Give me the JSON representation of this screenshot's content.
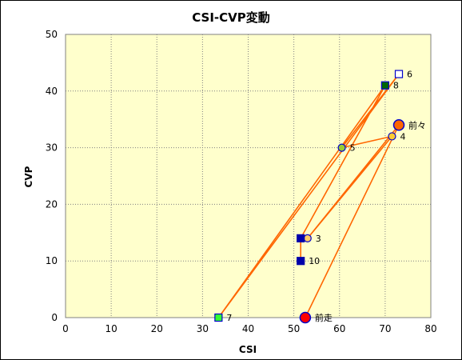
{
  "chart_data": {
    "type": "scatter",
    "title": "CSI-CVP変動",
    "xlabel": "CSI",
    "ylabel": "CVP",
    "xlim": [
      0,
      80
    ],
    "ylim": [
      0,
      50
    ],
    "xticks": [
      0,
      10,
      20,
      30,
      40,
      50,
      60,
      70,
      80
    ],
    "yticks": [
      0,
      10,
      20,
      30,
      40,
      50
    ],
    "grid": true,
    "plot_background": "#ffffcc",
    "line_color": "#ff6600",
    "points": [
      {
        "label": "前走",
        "x": 52.5,
        "y": 0,
        "marker": "circle",
        "fill": "#ff0000",
        "stroke": "#0000cc"
      },
      {
        "label": "前々",
        "x": 73,
        "y": 34,
        "marker": "circle",
        "fill": "#ff6600",
        "stroke": "#0000cc"
      },
      {
        "label": "3",
        "x": 53,
        "y": 14,
        "marker": "circle-small",
        "fill": "#ffcc66",
        "stroke": "#0000cc"
      },
      {
        "label": "4",
        "x": 71.5,
        "y": 32,
        "marker": "circle-small",
        "fill": "#ffcc33",
        "stroke": "#0000cc"
      },
      {
        "label": "5",
        "x": 60.5,
        "y": 30,
        "marker": "circle-small",
        "fill": "#99cc33",
        "stroke": "#0000cc"
      },
      {
        "label": "6",
        "x": 73,
        "y": 43,
        "marker": "square",
        "fill": "#ffffff",
        "stroke": "#0000cc"
      },
      {
        "label": "7",
        "x": 33.5,
        "y": 0,
        "marker": "square",
        "fill": "#33ff33",
        "stroke": "#0000cc"
      },
      {
        "label": "8",
        "x": 70,
        "y": 41,
        "marker": "square",
        "fill": "#006600",
        "stroke": "#0000cc"
      },
      {
        "label": "",
        "x": 51.5,
        "y": 14,
        "marker": "square",
        "fill": "#0000aa",
        "stroke": "#0000aa"
      },
      {
        "label": "10",
        "x": 51.5,
        "y": 10,
        "marker": "square",
        "fill": "#0000aa",
        "stroke": "#0000aa"
      }
    ],
    "path_order": [
      0,
      1,
      2,
      3,
      4,
      5,
      6,
      7,
      8,
      9
    ]
  }
}
